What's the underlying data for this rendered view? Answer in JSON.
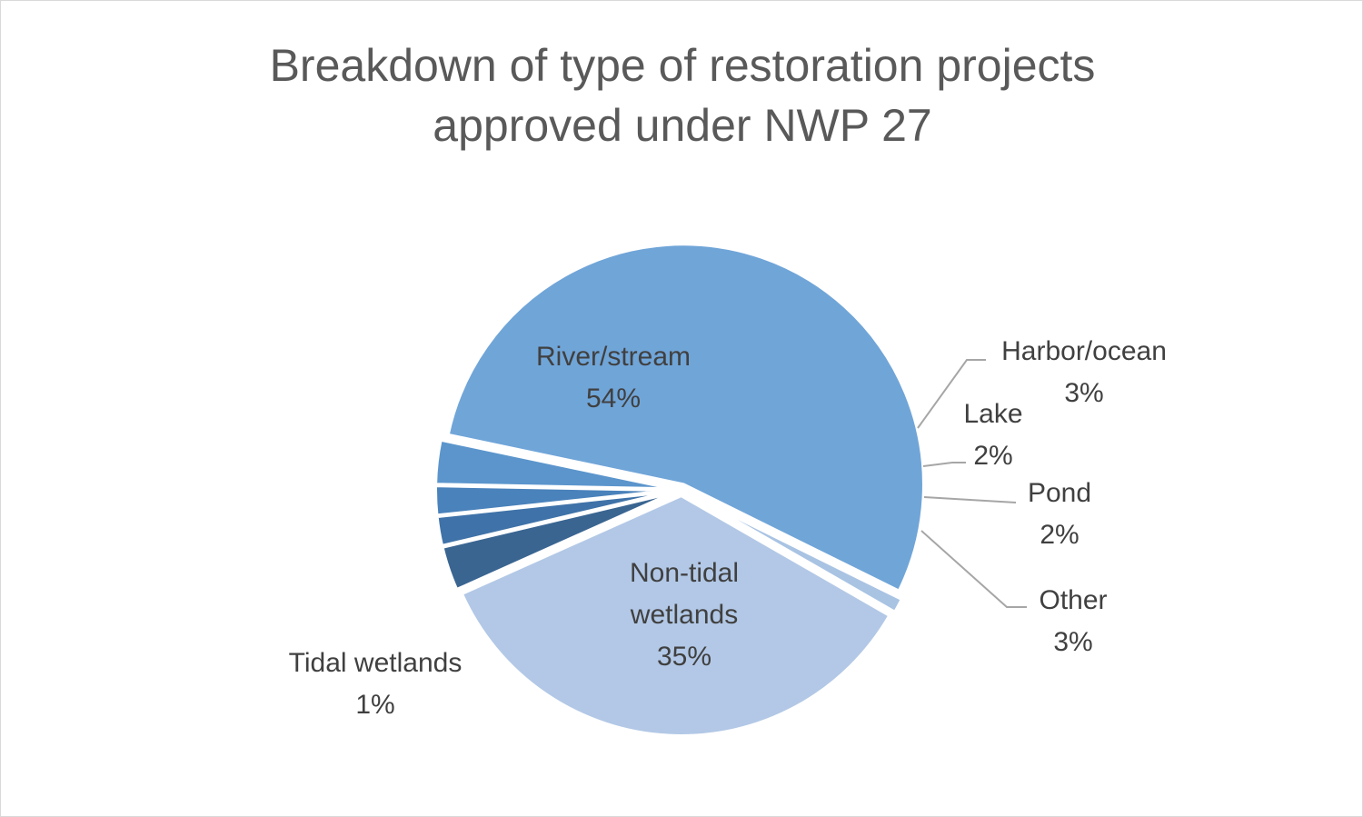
{
  "chart_data": {
    "type": "pie",
    "title_lines": [
      "Breakdown of type of restoration projects",
      "approved under NWP 27"
    ],
    "slices": [
      {
        "name": "River/stream",
        "value": 54,
        "label": "54%",
        "color": "#70a5d8"
      },
      {
        "name": "Harbor/ocean",
        "value": 3,
        "label": "3%",
        "color": "#5b95cc"
      },
      {
        "name": "Lake",
        "value": 2,
        "label": "2%",
        "color": "#4a82bb"
      },
      {
        "name": "Pond",
        "value": 2,
        "label": "2%",
        "color": "#3f72a8"
      },
      {
        "name": "Other",
        "value": 3,
        "label": "3%",
        "color": "#3a6591"
      },
      {
        "name": "Non-tidal wetlands",
        "value": 35,
        "label": "35%",
        "color": "#b2c8e6"
      },
      {
        "name": "Tidal wetlands",
        "value": 1,
        "label": "1%",
        "color": "#a9c3e3"
      }
    ],
    "legend": "none",
    "data_labels": "category name and percentage"
  }
}
